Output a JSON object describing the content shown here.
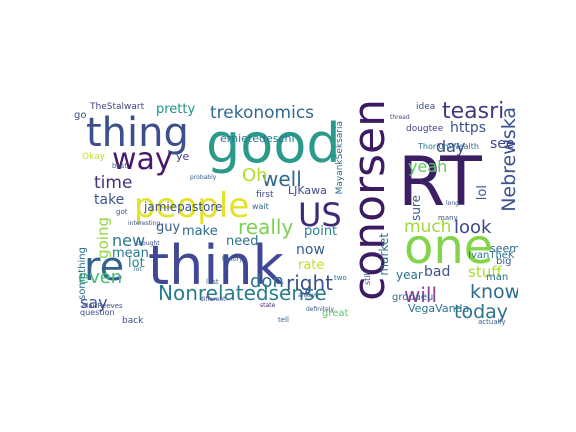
{
  "cloud": {
    "words": [
      {
        "text": "RT",
        "color": "#3b1e63"
      },
      {
        "text": "good",
        "color": "#2a9a8b"
      },
      {
        "text": "think",
        "color": "#404896"
      },
      {
        "text": "conorsen",
        "color": "#3c1b62"
      },
      {
        "text": "one",
        "color": "#83d34b"
      },
      {
        "text": "people",
        "color": "#e3e227"
      },
      {
        "text": "thing",
        "color": "#3d4f8c"
      },
      {
        "text": "re",
        "color": "#33638d"
      },
      {
        "text": "way",
        "color": "#48186a"
      },
      {
        "text": "US",
        "color": "#3f2a75"
      },
      {
        "text": "Nonrelatedsense",
        "color": "#287c8e"
      },
      {
        "text": "trekonomics",
        "color": "#31688e"
      },
      {
        "text": "Nebrewska",
        "color": "#3b528b"
      },
      {
        "text": "teasri",
        "color": "#43377f"
      },
      {
        "text": "right",
        "color": "#3a538b"
      },
      {
        "text": "don",
        "color": "#2d708e"
      },
      {
        "text": "well",
        "color": "#30678d"
      },
      {
        "text": "Oh",
        "color": "#b5de2b"
      },
      {
        "text": "really",
        "color": "#7ad151"
      },
      {
        "text": "know",
        "color": "#2f6b8e"
      },
      {
        "text": "will",
        "color": "#8f3c9c"
      },
      {
        "text": "today",
        "color": "#2c738e"
      },
      {
        "text": "time",
        "color": "#46307e"
      },
      {
        "text": "new",
        "color": "#2a788e"
      },
      {
        "text": "look",
        "color": "#3f4889"
      },
      {
        "text": "much",
        "color": "#9fda3a"
      },
      {
        "text": "yeah",
        "color": "#5ec962"
      },
      {
        "text": "day",
        "color": "#3e4c8a"
      },
      {
        "text": "even",
        "color": "#43bf71"
      },
      {
        "text": "say",
        "color": "#3a548c"
      },
      {
        "text": "going",
        "color": "#94d840"
      },
      {
        "text": "stuff",
        "color": "#aadc32"
      },
      {
        "text": "https",
        "color": "#3b528b"
      },
      {
        "text": "see",
        "color": "#414487"
      },
      {
        "text": "now",
        "color": "#365c8d"
      },
      {
        "text": "point",
        "color": "#26828e"
      },
      {
        "text": "take",
        "color": "#3a548c"
      },
      {
        "text": "lot",
        "color": "#25838e"
      },
      {
        "text": "make",
        "color": "#2f6c8e"
      },
      {
        "text": "need",
        "color": "#2c728e"
      },
      {
        "text": "bad",
        "color": "#3b528b"
      },
      {
        "text": "rate",
        "color": "#c2df23"
      },
      {
        "text": "mean",
        "color": "#2a788e"
      },
      {
        "text": "guy",
        "color": "#345f8d"
      },
      {
        "text": "pretty",
        "color": "#21918c"
      },
      {
        "text": "year",
        "color": "#2c728e"
      },
      {
        "text": "sure",
        "color": "#38598c"
      },
      {
        "text": "lol",
        "color": "#355f8d"
      },
      {
        "text": "market",
        "color": "#2d708e"
      },
      {
        "text": "ernietedeschi",
        "color": "#2a788e"
      },
      {
        "text": "jamiepastore",
        "color": "#3b528b"
      },
      {
        "text": "LJKawa",
        "color": "#3e4989"
      },
      {
        "text": "VegaVanda",
        "color": "#2b748e"
      },
      {
        "text": "MayankSeksaria",
        "color": "#2e6e8e"
      },
      {
        "text": "grodaeu",
        "color": "#31688e"
      },
      {
        "text": "IvanTheK",
        "color": "#2a768e"
      },
      {
        "text": "TheStalwart",
        "color": "#404387"
      },
      {
        "text": "something",
        "color": "#2e6f8e"
      },
      {
        "text": "seem",
        "color": "#31678e"
      },
      {
        "text": "big",
        "color": "#38588c"
      },
      {
        "text": "great",
        "color": "#5ac864"
      },
      {
        "text": "question",
        "color": "#404588"
      },
      {
        "text": "first",
        "color": "#3e4a89"
      },
      {
        "text": "wait",
        "color": "#2f6b8e"
      },
      {
        "text": "ThoriumWealth",
        "color": "#2e6d8e"
      },
      {
        "text": "dougtee",
        "color": "#414487"
      },
      {
        "text": "idea",
        "color": "#3d4e8a"
      },
      {
        "text": "man",
        "color": "#2d718e"
      },
      {
        "text": "back",
        "color": "#3a548c"
      },
      {
        "text": "thought",
        "color": "#3e4a89"
      },
      {
        "text": "interesting",
        "color": "#3c508b"
      },
      {
        "text": "history",
        "color": "#33638d"
      },
      {
        "text": "still",
        "color": "#3b528b"
      },
      {
        "text": "last",
        "color": "#3a548c"
      },
      {
        "text": "ye",
        "color": "#433d84"
      },
      {
        "text": "go",
        "color": "#3e4a89"
      },
      {
        "text": "Okay",
        "color": "#c2df23"
      },
      {
        "text": "many",
        "color": "#3b528b"
      },
      {
        "text": "two",
        "color": "#2c738e"
      },
      {
        "text": "actually",
        "color": "#365d8d"
      },
      {
        "text": "state",
        "color": "#482878"
      },
      {
        "text": "different",
        "color": "#3e4a89"
      },
      {
        "text": "elairReeves",
        "color": "#3d4e8a"
      },
      {
        "text": "best",
        "color": "#31688e"
      },
      {
        "text": "got",
        "color": "#3a548c"
      },
      {
        "text": "lot",
        "color": "#2c728e"
      },
      {
        "text": "probably",
        "color": "#35608d"
      },
      {
        "text": "thread",
        "color": "#404387"
      },
      {
        "text": "long",
        "color": "#3c508b"
      },
      {
        "text": "tell",
        "color": "#33628d"
      },
      {
        "text": "definitely",
        "color": "#3a538b"
      },
      {
        "text": "always",
        "color": "#38598c"
      }
    ]
  }
}
